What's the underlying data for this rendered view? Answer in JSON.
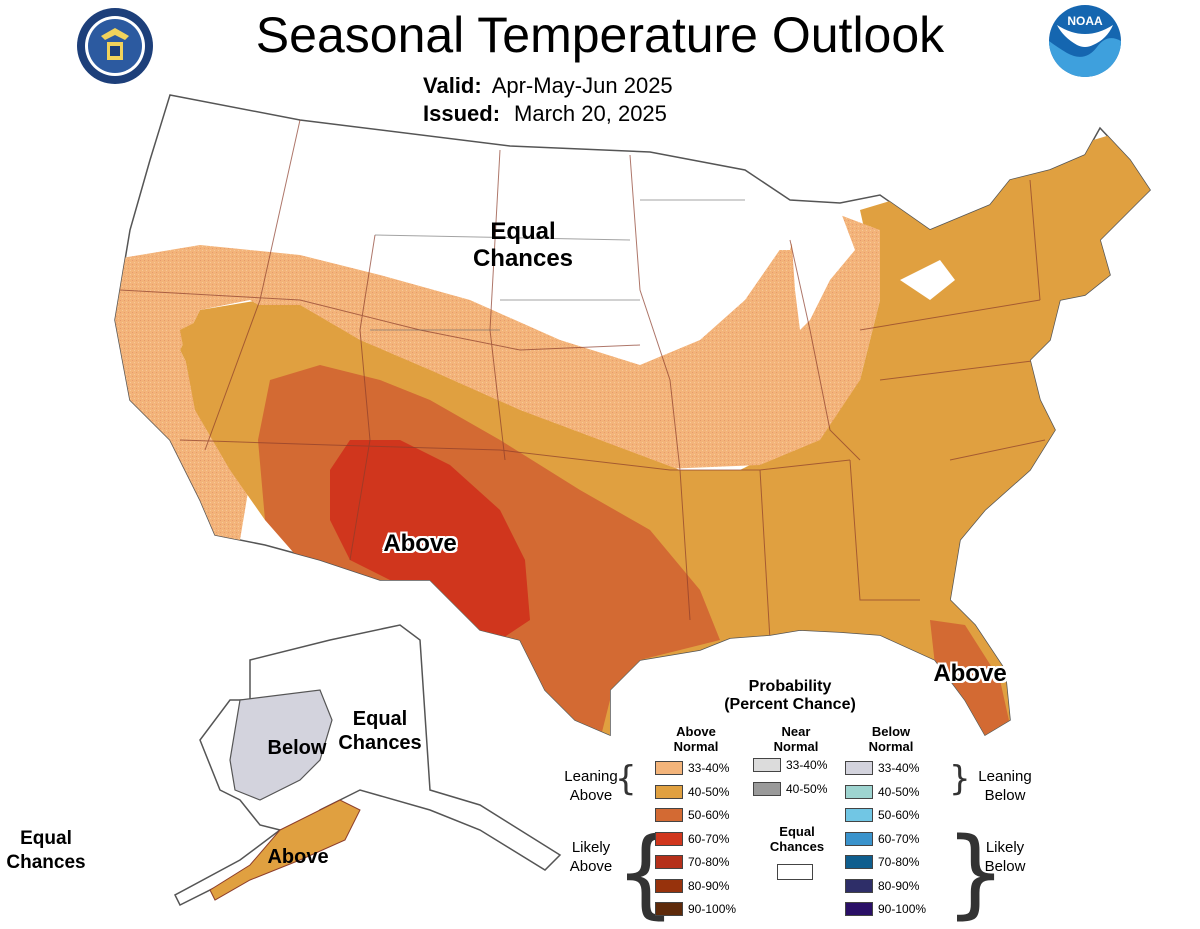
{
  "header": {
    "title": "Seasonal Temperature Outlook",
    "valid_label": "Valid:",
    "valid_value": "Apr-May-Jun 2025",
    "issued_label": "Issued:",
    "issued_value": "March 20, 2025"
  },
  "logos": {
    "left": {
      "icon": "department-of-commerce-seal-icon",
      "color": "#1d3f7a"
    },
    "right": {
      "icon": "noaa-logo-icon",
      "text": "NOAA",
      "color": "#1566b0"
    }
  },
  "map_labels": {
    "equal_chances_north": "Equal\nChances",
    "above_southwest": "Above",
    "above_florida": "Above",
    "below_alaska": "Below",
    "equal_chances_alaska": "Equal\nChances",
    "above_alaska": "Above",
    "equal_chances_far": "Equal\nChances"
  },
  "colors": {
    "above_33_40": "#f3b47a",
    "above_40_50": "#e0a040",
    "above_50_60": "#d36a33",
    "above_60_70": "#d0361d",
    "below_33_40": "#d3d3dd",
    "state_lines": "#8c3d2b",
    "outline": "#555555"
  },
  "legend": {
    "title_line1": "Probability",
    "title_line2": "(Percent Chance)",
    "col_above": "Above\nNormal",
    "col_near": "Near\nNormal",
    "col_below": "Below\nNormal",
    "leaning_above": "Leaning\nAbove",
    "likely_above": "Likely\nAbove",
    "leaning_below": "Leaning\nBelow",
    "likely_below": "Likely\nBelow",
    "equal_chances": "Equal\nChances",
    "above_rows": [
      {
        "label": "33-40%",
        "color": "#f3b47a"
      },
      {
        "label": "40-50%",
        "color": "#e0a040"
      },
      {
        "label": "50-60%",
        "color": "#d36a33"
      },
      {
        "label": "60-70%",
        "color": "#d0361d"
      },
      {
        "label": "70-80%",
        "color": "#b5301a"
      },
      {
        "label": "80-90%",
        "color": "#97320c"
      },
      {
        "label": "90-100%",
        "color": "#5e2a0a"
      }
    ],
    "near_rows": [
      {
        "label": "33-40%",
        "color": "#dcdcdc"
      },
      {
        "label": "40-50%",
        "color": "#9a9a9a"
      }
    ],
    "below_rows": [
      {
        "label": "33-40%",
        "color": "#d3d3dd"
      },
      {
        "label": "40-50%",
        "color": "#9ed4d0"
      },
      {
        "label": "50-60%",
        "color": "#71c6e4"
      },
      {
        "label": "60-70%",
        "color": "#3a93cc"
      },
      {
        "label": "70-80%",
        "color": "#0f5e8e"
      },
      {
        "label": "80-90%",
        "color": "#2e2e68"
      },
      {
        "label": "90-100%",
        "color": "#2a0f66"
      }
    ]
  }
}
